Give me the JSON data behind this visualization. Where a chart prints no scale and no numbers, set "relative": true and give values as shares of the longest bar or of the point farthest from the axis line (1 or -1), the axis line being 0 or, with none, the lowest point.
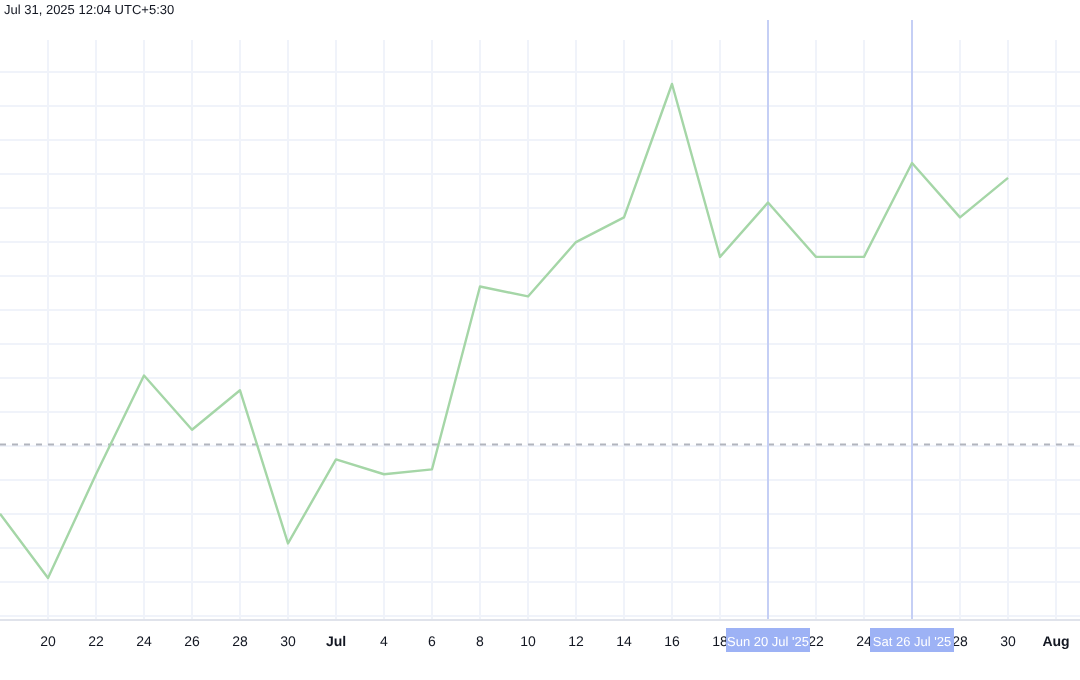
{
  "chart_data": {
    "type": "line",
    "relative": true,
    "grid": true,
    "marker": "none",
    "line_style": "solid",
    "annotations": [
      "Jul 31, 2025 12:04 UTC+5:30"
    ],
    "x": [
      "2025-06-18",
      "2025-06-20",
      "2025-06-22",
      "2025-06-24",
      "2025-06-26",
      "2025-06-28",
      "2025-06-30",
      "2025-07-02",
      "2025-07-04",
      "2025-07-06",
      "2025-07-08",
      "2025-07-10",
      "2025-07-12",
      "2025-07-14",
      "2025-07-16",
      "2025-07-18",
      "2025-07-20",
      "2025-07-22",
      "2025-07-24",
      "2025-07-26",
      "2025-07-28",
      "2025-07-30"
    ],
    "series": [
      {
        "color": "#a5d6a7",
        "values": [
          0.13,
          0,
          0.21,
          0.41,
          0.3,
          0.38,
          0.07,
          0.24,
          0.21,
          0.22,
          0.59,
          0.57,
          0.68,
          0.73,
          1,
          0.65,
          0.76,
          0.65,
          0.65,
          0.84,
          0.73,
          0.81
        ]
      }
    ],
    "xlim": [
      "2025-06-18",
      "2025-08-02"
    ],
    "xticks": [
      {
        "value": "2025-06-20",
        "label": "20"
      },
      {
        "value": "2025-06-22",
        "label": "22"
      },
      {
        "value": "2025-06-24",
        "label": "24"
      },
      {
        "value": "2025-06-26",
        "label": "26"
      },
      {
        "value": "2025-06-28",
        "label": "28"
      },
      {
        "value": "2025-06-30",
        "label": "30"
      },
      {
        "value": "2025-07-02",
        "label": "Jul"
      },
      {
        "value": "2025-07-04",
        "label": "4"
      },
      {
        "value": "2025-07-06",
        "label": "6"
      },
      {
        "value": "2025-07-08",
        "label": "8"
      },
      {
        "value": "2025-07-10",
        "label": "10"
      },
      {
        "value": "2025-07-12",
        "label": "12"
      },
      {
        "value": "2025-07-14",
        "label": "14"
      },
      {
        "value": "2025-07-16",
        "label": "16"
      },
      {
        "value": "2025-07-18",
        "label": "18"
      },
      {
        "value": "2025-07-22",
        "label": "22"
      },
      {
        "value": "2025-07-24",
        "label": "24"
      },
      {
        "value": "2025-07-28",
        "label": "28"
      },
      {
        "value": "2025-07-30",
        "label": "30"
      },
      {
        "value": "2025-08-01",
        "label": "Aug"
      }
    ],
    "ref_lines": [
      {
        "axis": "y",
        "value": 0.27,
        "color": "#b2b5be",
        "line_style": "dashed"
      },
      {
        "axis": "x",
        "value": "2025-07-20",
        "label": "Sun 20 Jul '25",
        "color": "#c5cff5"
      },
      {
        "axis": "x",
        "value": "2025-07-26",
        "label": "Sat 26 Jul '25",
        "color": "#c5cff5"
      }
    ]
  }
}
